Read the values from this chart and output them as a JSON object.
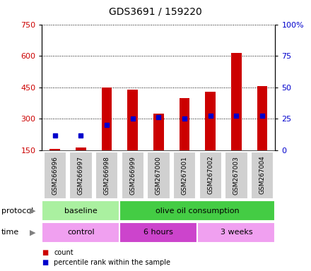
{
  "title": "GDS3691 / 159220",
  "samples": [
    "GSM266996",
    "GSM266997",
    "GSM266998",
    "GSM266999",
    "GSM267000",
    "GSM267001",
    "GSM267002",
    "GSM267003",
    "GSM267004"
  ],
  "count_bottom": [
    150,
    150,
    150,
    150,
    150,
    150,
    150,
    150,
    150
  ],
  "count_top": [
    158,
    163,
    450,
    440,
    325,
    400,
    430,
    615,
    455
  ],
  "percentile_rank": [
    220,
    220,
    270,
    300,
    310,
    300,
    315,
    315,
    315
  ],
  "ylim_left": [
    150,
    750
  ],
  "ylim_right": [
    0,
    100
  ],
  "yticks_left": [
    150,
    300,
    450,
    600,
    750
  ],
  "yticks_right": [
    0,
    25,
    50,
    75,
    100
  ],
  "bar_color": "#cc0000",
  "dot_color": "#0000cc",
  "bar_width": 0.4,
  "protocol_baseline_color": "#aaf0a0",
  "protocol_olive_color": "#44cc44",
  "time_control_color": "#f0a0f0",
  "time_6h_color": "#cc44cc",
  "time_3w_color": "#f0a0f0",
  "sample_box_color": "#d0d0d0",
  "legend_count_label": "count",
  "legend_pct_label": "percentile rank within the sample",
  "bar_color_red": "#cc0000",
  "dot_color_blue": "#0000cc",
  "title_fontsize": 10,
  "note": "baseline=3 samples, olive oil=6 samples; control=3, 6hours=3, 3weeks=3"
}
